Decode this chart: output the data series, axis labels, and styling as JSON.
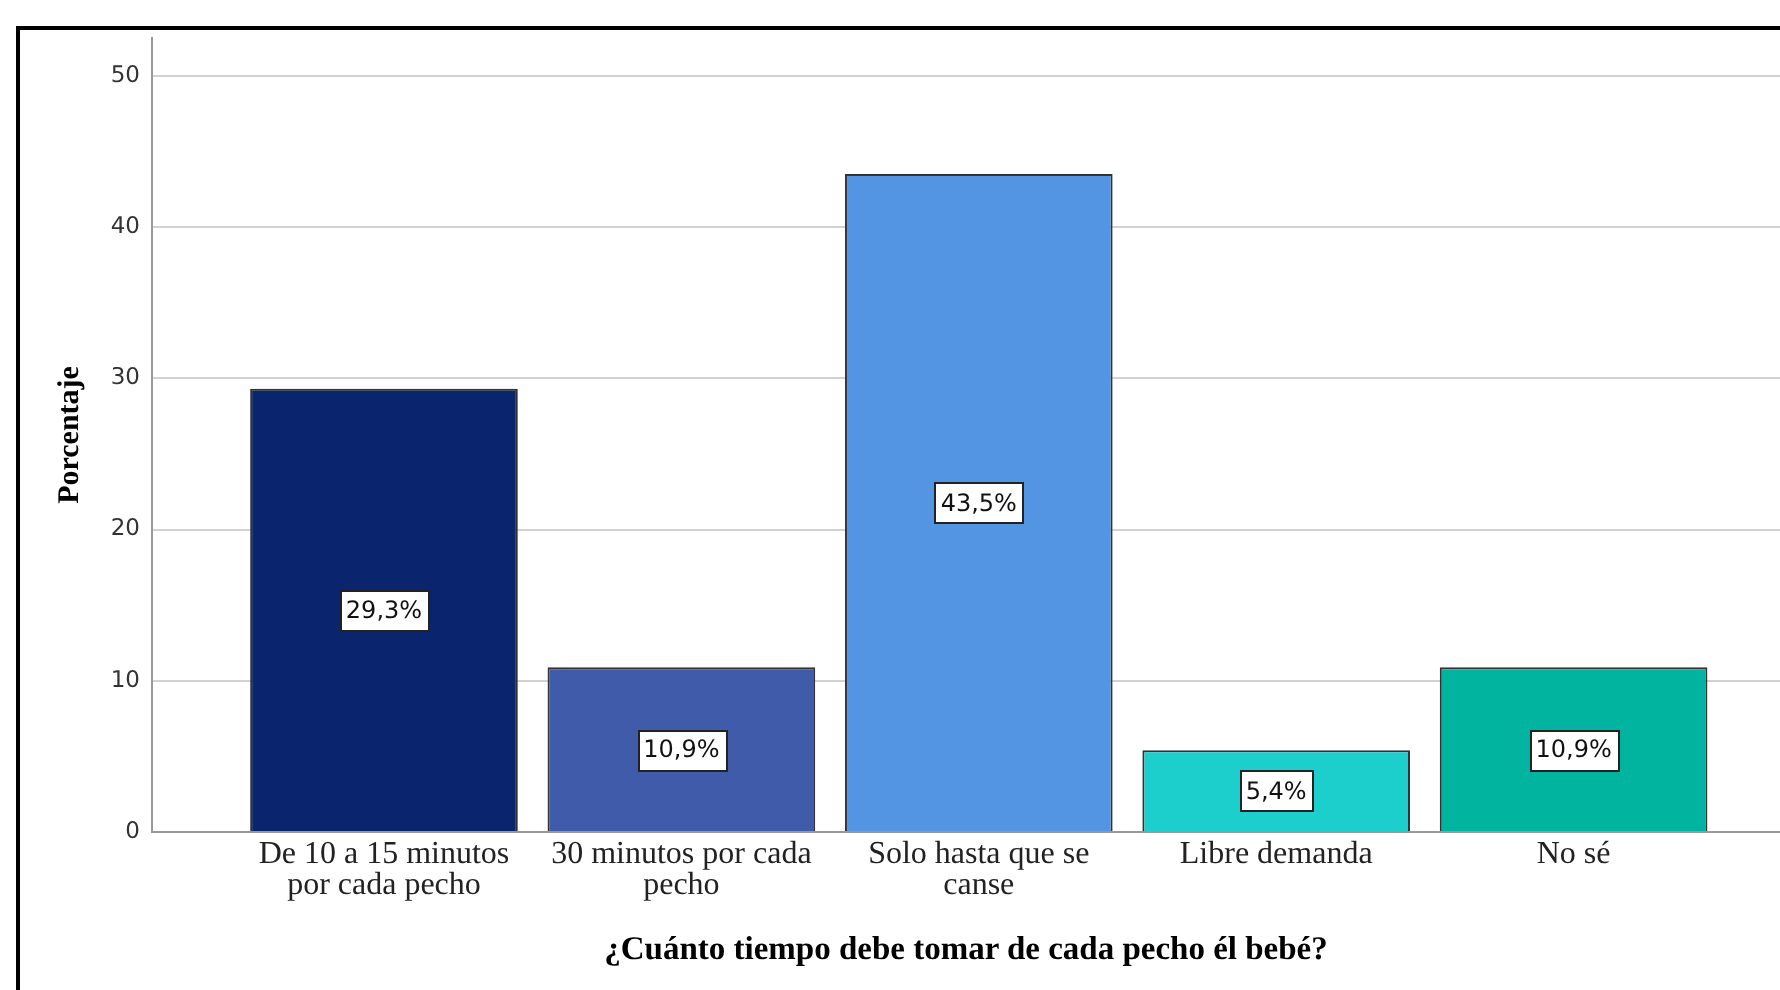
{
  "chart_data": {
    "type": "bar",
    "xlabel": "¿Cuánto tiempo debe tomar de cada pecho él bebé?",
    "ylabel": "Porcentaje",
    "categories": [
      "De 10 a 15 minutos por cada pecho",
      "30 minutos por cada pecho",
      "Solo hasta que se canse",
      "Libre demanda",
      "No sé"
    ],
    "values": [
      29.3,
      10.9,
      43.5,
      5.4,
      10.9
    ],
    "colors": [
      "#0a256e",
      "#3f5ba9",
      "#5395e3",
      "#1dcfcc",
      "#00b4a0"
    ],
    "value_labels": [
      "29,3%",
      "10,9%",
      "43,5%",
      "5,4%",
      "10,9%"
    ],
    "ylim": [
      0,
      52.5
    ],
    "yticks": [
      0,
      10,
      20,
      30,
      40,
      50
    ],
    "grid": "y"
  }
}
